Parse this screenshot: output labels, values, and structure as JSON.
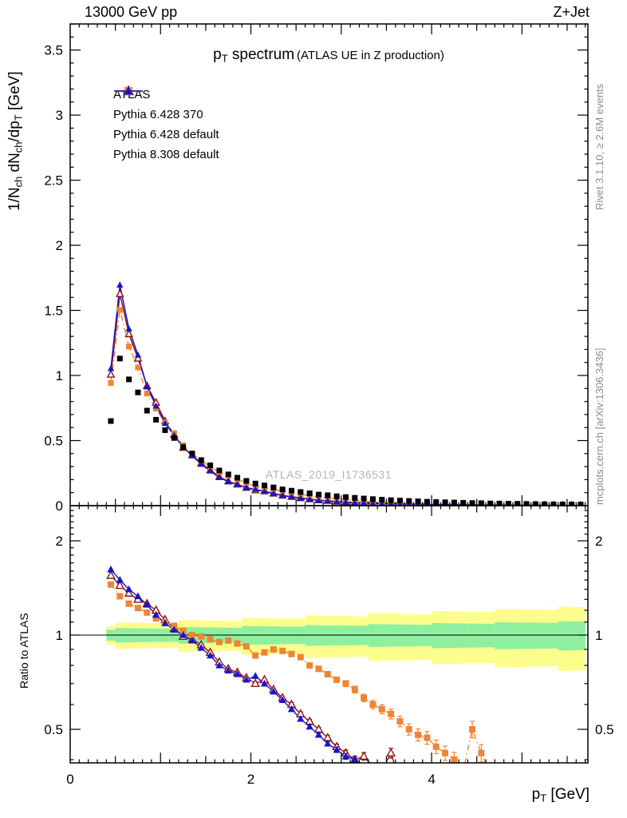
{
  "header": {
    "left": "13000 GeV pp",
    "right": "Z+Jet"
  },
  "side_notes": {
    "top_right": "Rivet 3.1.10, ≥ 2.6M events",
    "bottom_right": "mcplots.cern.ch [arXiv:1306.3436]"
  },
  "watermark": "ATLAS_2019_I1736531",
  "chart_data": {
    "type": "scatter",
    "title": "p_T spectrum (ATLAS UE in Z production)",
    "title_rich": [
      [
        "p"
      ],
      [
        "T",
        "sub"
      ],
      [
        " spectrum"
      ]
    ],
    "subtitle": "(ATLAS UE in Z production)",
    "xlabel": "p_T [GeV]",
    "xlabel_rich": [
      [
        "p"
      ],
      [
        "T",
        "sub"
      ],
      [
        " [GeV]"
      ]
    ],
    "ylabel_main": "1/N_ch dN_ch/dp_T [GeV]",
    "ylabel_main_rich": [
      [
        "1/N"
      ],
      [
        "ch",
        "sub"
      ],
      [
        " dN"
      ],
      [
        "ch",
        "sub"
      ],
      [
        "/dp"
      ],
      [
        "T",
        "sub"
      ],
      [
        " [GeV]"
      ]
    ],
    "ylabel_ratio": "Ratio to ATLAS",
    "axes": {
      "xlim": [
        0,
        5.73
      ],
      "ylim_main": [
        0,
        3.7
      ],
      "ylim_ratio": [
        0.39,
        2.59
      ],
      "ratio_scale": "log",
      "xticks_labeled": [
        0,
        2,
        4
      ],
      "yticks_main": [
        0,
        0.5,
        1,
        1.5,
        2,
        2.5,
        3,
        3.5
      ],
      "yticks_ratio": [
        0.5,
        1,
        2
      ],
      "grid": false,
      "legend_position": "top-left-inside"
    },
    "bin_width": 0.1,
    "x": [
      0.45,
      0.55,
      0.65,
      0.75,
      0.85,
      0.95,
      1.05,
      1.15,
      1.25,
      1.35,
      1.45,
      1.55,
      1.65,
      1.75,
      1.85,
      1.95,
      2.05,
      2.15,
      2.25,
      2.35,
      2.45,
      2.55,
      2.65,
      2.75,
      2.85,
      2.95,
      3.05,
      3.15,
      3.25,
      3.35,
      3.45,
      3.55,
      3.65,
      3.75,
      3.85,
      3.95,
      4.05,
      4.15,
      4.25,
      4.35,
      4.45,
      4.55,
      4.65,
      4.75,
      4.85,
      4.95,
      5.05,
      5.15,
      5.25,
      5.35,
      5.45,
      5.55,
      5.65
    ],
    "series": [
      {
        "name": "ATLAS",
        "marker": "square-filled",
        "color": "#000000",
        "line": "none",
        "values": [
          0.65,
          1.13,
          0.97,
          0.87,
          0.73,
          0.66,
          0.58,
          0.52,
          0.45,
          0.4,
          0.35,
          0.31,
          0.27,
          0.24,
          0.215,
          0.19,
          0.17,
          0.155,
          0.14,
          0.125,
          0.115,
          0.105,
          0.095,
          0.085,
          0.08,
          0.072,
          0.066,
          0.06,
          0.055,
          0.05,
          0.046,
          0.042,
          0.039,
          0.036,
          0.033,
          0.03,
          0.028,
          0.026,
          0.024,
          0.022,
          0.02,
          0.019,
          0.017,
          0.016,
          0.015,
          0.014,
          0.013,
          0.012,
          0.011,
          0.01,
          0.0095,
          0.009,
          0.0085
        ]
      },
      {
        "name": "Pythia 6.428 370",
        "marker": "triangle-open",
        "color": "#8e1111",
        "line": "solid",
        "ratio_to_atlas": [
          1.55,
          1.44,
          1.36,
          1.3,
          1.26,
          1.2,
          1.12,
          1.05,
          0.99,
          0.97,
          0.93,
          0.88,
          0.82,
          0.78,
          0.76,
          0.73,
          0.7,
          0.72,
          0.67,
          0.63,
          0.6,
          0.56,
          0.53,
          0.5,
          0.47,
          0.44,
          0.42,
          0.4,
          0.41,
          0.38,
          0.37,
          0.42,
          0.34,
          0.32,
          0.31,
          0.3,
          0.29,
          0.28,
          0.28,
          0.27,
          0.27,
          0.26,
          0.26,
          0.25,
          0.25,
          0.24,
          0.24,
          0.23,
          0.23,
          0.22,
          0.22,
          0.21,
          0.21
        ]
      },
      {
        "name": "Pythia 6.428 default",
        "marker": "square-filled",
        "color": "#ef8533",
        "line": "dashdot",
        "ratio_to_atlas": [
          1.45,
          1.33,
          1.26,
          1.22,
          1.18,
          1.13,
          1.1,
          1.07,
          1.03,
          1.0,
          0.99,
          0.97,
          0.95,
          0.96,
          0.94,
          0.92,
          0.86,
          0.88,
          0.9,
          0.89,
          0.87,
          0.85,
          0.8,
          0.78,
          0.75,
          0.72,
          0.7,
          0.67,
          0.63,
          0.6,
          0.58,
          0.56,
          0.53,
          0.5,
          0.48,
          0.47,
          0.44,
          0.42,
          0.4,
          0.37,
          0.5,
          0.42,
          0.36,
          0.34,
          0.33,
          0.31,
          0.3,
          0.29,
          0.28,
          0.27,
          0.26,
          0.25,
          0.24
        ]
      },
      {
        "name": "Pythia 8.308 default",
        "marker": "triangle-filled",
        "color": "#1515d0",
        "line": "solid",
        "ratio_to_atlas": [
          1.62,
          1.5,
          1.4,
          1.33,
          1.25,
          1.16,
          1.09,
          1.04,
          1.0,
          0.96,
          0.91,
          0.86,
          0.8,
          0.77,
          0.75,
          0.72,
          0.74,
          0.7,
          0.66,
          0.62,
          0.58,
          0.54,
          0.51,
          0.48,
          0.45,
          0.43,
          0.41,
          0.4,
          0.38,
          0.36,
          0.35,
          0.34,
          0.33,
          0.32,
          0.31,
          0.3,
          0.3,
          0.29,
          0.28,
          0.28,
          0.27,
          0.27,
          0.26,
          0.26,
          0.25,
          0.25,
          0.24,
          0.24,
          0.23,
          0.23,
          0.22,
          0.22,
          0.21
        ]
      }
    ],
    "bands": {
      "green_color": "#8df0a0",
      "yellow_color": "#fdfd8d",
      "green_halfwidth": [
        0.046,
        0.047,
        0.048,
        0.049,
        0.05,
        0.051,
        0.053,
        0.054,
        0.055,
        0.056,
        0.057,
        0.058,
        0.059,
        0.06,
        0.061,
        0.062,
        0.064,
        0.065,
        0.066,
        0.067,
        0.068,
        0.069,
        0.07,
        0.071,
        0.072,
        0.073,
        0.075,
        0.076,
        0.077,
        0.078,
        0.079,
        0.08,
        0.081,
        0.082,
        0.083,
        0.084,
        0.086,
        0.087,
        0.088,
        0.089,
        0.09,
        0.091,
        0.092,
        0.093,
        0.094,
        0.095,
        0.097,
        0.098,
        0.099,
        0.1,
        0.101,
        0.102,
        0.103
      ],
      "yellow_halfwidth": [
        0.082,
        0.085,
        0.088,
        0.09,
        0.093,
        0.096,
        0.099,
        0.101,
        0.104,
        0.107,
        0.11,
        0.112,
        0.115,
        0.118,
        0.121,
        0.123,
        0.126,
        0.129,
        0.132,
        0.134,
        0.137,
        0.14,
        0.143,
        0.145,
        0.148,
        0.151,
        0.154,
        0.156,
        0.159,
        0.162,
        0.165,
        0.167,
        0.17,
        0.173,
        0.176,
        0.178,
        0.181,
        0.184,
        0.187,
        0.189,
        0.192,
        0.195,
        0.198,
        0.2,
        0.203,
        0.206,
        0.209,
        0.211,
        0.214,
        0.217,
        0.22,
        0.222,
        0.225
      ]
    }
  }
}
